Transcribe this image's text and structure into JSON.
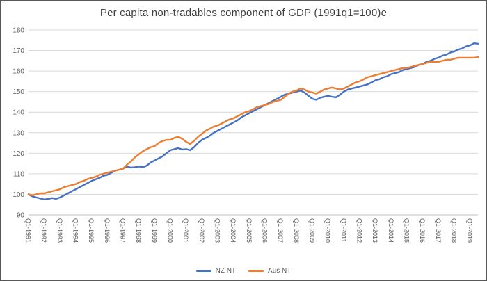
{
  "chart_data": {
    "type": "line",
    "title": "Per capita non-tradables component of GDP (1991q1=100)e",
    "xlabel": "",
    "ylabel": "",
    "ylim": [
      90,
      180
    ],
    "y_ticks": [
      90,
      100,
      110,
      120,
      130,
      140,
      150,
      160,
      170,
      180
    ],
    "grid": "horizontal",
    "legend_position": "bottom",
    "x_tick_labels": [
      "Q1-1991",
      "Q1-1992",
      "Q1-1993",
      "Q1-1994",
      "Q1-1995",
      "Q1-1996",
      "Q1-1997",
      "Q1-1998",
      "Q1-1999",
      "Q1-2000",
      "Q1-2001",
      "Q1-2002",
      "Q1-2003",
      "Q1-2004",
      "Q1-2005",
      "Q1-2006",
      "Q1-2007",
      "Q1-2008",
      "Q1-2009",
      "Q1-2010",
      "Q1-2011",
      "Q1-2012",
      "Q1-2013",
      "Q1-2014",
      "Q1-2015",
      "Q1-2016",
      "Q1-2017",
      "Q1-2018",
      "Q1-2019"
    ],
    "x_tick_every_n_points": 4,
    "colors": {
      "grid": "#d9d9d9",
      "axis": "#bfbfbf",
      "tick_text": "#595959",
      "title_text": "#404040"
    },
    "series": [
      {
        "name": "NZ NT",
        "color": "#4472C4",
        "values": [
          100,
          99,
          98.5,
          98,
          97.5,
          97.8,
          98.2,
          97.8,
          98.5,
          99.5,
          100.5,
          101.5,
          102.5,
          103.5,
          104.5,
          105.5,
          106.5,
          107.3,
          108,
          109,
          109.5,
          110.5,
          111.5,
          112,
          112.5,
          113.5,
          113,
          113.2,
          113.5,
          113.2,
          114,
          115.5,
          116.5,
          117.5,
          118.5,
          120,
          121.5,
          122,
          122.5,
          121.8,
          122,
          121.5,
          123,
          125,
          126.5,
          127.5,
          128.5,
          130,
          131,
          132,
          133,
          134,
          135,
          136,
          137.5,
          138.5,
          139.5,
          140.5,
          141.5,
          142.5,
          143.5,
          144.5,
          145.5,
          146.5,
          147.5,
          148.5,
          149,
          149.5,
          150,
          150.5,
          149.5,
          148,
          146.5,
          146,
          147,
          147.5,
          148,
          147.5,
          147.2,
          148.5,
          150,
          151,
          151.5,
          152,
          152.5,
          153,
          153.5,
          154.5,
          155.5,
          156,
          157,
          157.5,
          158.5,
          159,
          159.5,
          160.5,
          161,
          161.5,
          162,
          163,
          163.5,
          164.5,
          165,
          166,
          166.5,
          167.5,
          168,
          169,
          169.5,
          170.5,
          171,
          172,
          172.5,
          173.5,
          173.3
        ]
      },
      {
        "name": "Aus NT",
        "color": "#ED7D31",
        "values": [
          100,
          99.5,
          100,
          100.5,
          100.5,
          101,
          101.5,
          102,
          102.5,
          103.5,
          104,
          104.5,
          105,
          106,
          106.5,
          107.5,
          108,
          108.5,
          109.5,
          110,
          110.5,
          111,
          111.5,
          112,
          112.5,
          114.5,
          116,
          118,
          119.5,
          121,
          122,
          123,
          123.5,
          125,
          126,
          126.5,
          126.5,
          127.5,
          128,
          127,
          125.5,
          124.5,
          126,
          128,
          129.5,
          131,
          132,
          133,
          133.5,
          134.5,
          135.5,
          136.5,
          137,
          138,
          139,
          140,
          140.5,
          141.5,
          142.5,
          143,
          143.5,
          144,
          145,
          145.5,
          146,
          147.5,
          149,
          150,
          150.5,
          151.5,
          151,
          150,
          149.5,
          149,
          150,
          151,
          151.5,
          152,
          151.5,
          151,
          151.5,
          152.5,
          153.5,
          154.5,
          155,
          156,
          157,
          157.5,
          158,
          158.5,
          159,
          159.5,
          160,
          160.5,
          161,
          161.5,
          161.5,
          162,
          162.5,
          163,
          163.5,
          164,
          164.5,
          164.5,
          164.5,
          165,
          165.5,
          165.5,
          166,
          166.5,
          166.5,
          166.5,
          166.5,
          166.5,
          166.8
        ]
      }
    ]
  }
}
